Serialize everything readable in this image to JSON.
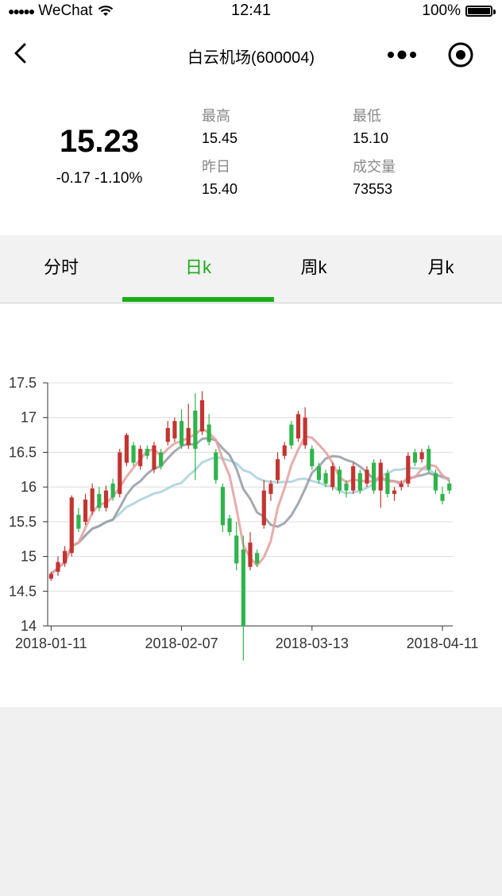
{
  "status_bar": {
    "carrier": "WeChat",
    "time": "12:41",
    "battery": "100%"
  },
  "nav": {
    "title": "白云机场(600004)"
  },
  "quote": {
    "price": "15.23",
    "change": "-0.17 -1.10%",
    "high_label": "最高",
    "high_value": "15.45",
    "low_label": "最低",
    "low_value": "15.10",
    "prev_label": "昨日",
    "prev_value": "15.40",
    "volume_label": "成交量",
    "volume_value": "73553"
  },
  "tabs": [
    {
      "label": "分时",
      "active": false
    },
    {
      "label": "日k",
      "active": true
    },
    {
      "label": "周k",
      "active": false
    },
    {
      "label": "月k",
      "active": false
    }
  ],
  "colors": {
    "up": "#c23531",
    "down": "#2fb44c",
    "accent": "#1aad19",
    "ma5": "#e8a2a2",
    "ma10": "#9aa0a8",
    "ma20": "#aed4dc"
  },
  "chart_data": {
    "type": "candlestick",
    "ylim": [
      14,
      17.5
    ],
    "y_ticks": [
      14,
      14.5,
      15,
      15.5,
      16,
      16.5,
      17,
      17.5
    ],
    "y_tick_labels": [
      "14",
      "14.5",
      "15",
      "15.5",
      "16",
      "16.5",
      "17",
      "17.5"
    ],
    "x_tick_labels": [
      {
        "label": "2018-01-11",
        "index": 0
      },
      {
        "label": "2018-02-07",
        "index": 19
      },
      {
        "label": "2018-03-13",
        "index": 38
      },
      {
        "label": "2018-04-11",
        "index": 57
      }
    ],
    "candles": [
      [
        14.68,
        14.75,
        14.65,
        14.78
      ],
      [
        14.78,
        14.92,
        14.72,
        15.0
      ],
      [
        14.9,
        15.08,
        14.85,
        15.15
      ],
      [
        15.05,
        15.85,
        15.0,
        15.88
      ],
      [
        15.6,
        15.4,
        15.35,
        15.7
      ],
      [
        15.5,
        15.82,
        15.45,
        15.9
      ],
      [
        15.65,
        15.98,
        15.6,
        16.05
      ],
      [
        15.9,
        15.7,
        15.65,
        16.0
      ],
      [
        15.7,
        15.95,
        15.65,
        16.02
      ],
      [
        16.05,
        15.85,
        15.8,
        16.12
      ],
      [
        15.9,
        16.5,
        15.85,
        16.55
      ],
      [
        16.35,
        16.75,
        16.3,
        16.78
      ],
      [
        16.6,
        16.35,
        16.3,
        16.65
      ],
      [
        16.3,
        16.55,
        16.25,
        16.6
      ],
      [
        16.55,
        16.45,
        16.4,
        16.6
      ],
      [
        16.25,
        16.6,
        16.2,
        16.65
      ],
      [
        16.5,
        16.3,
        16.25,
        16.55
      ],
      [
        16.65,
        16.85,
        16.6,
        16.95
      ],
      [
        16.7,
        16.95,
        16.65,
        17.0
      ],
      [
        16.95,
        16.6,
        16.55,
        17.12
      ],
      [
        16.6,
        16.85,
        16.55,
        17.2
      ],
      [
        17.1,
        16.55,
        16.1,
        17.35
      ],
      [
        16.8,
        17.25,
        16.75,
        17.38
      ],
      [
        16.9,
        16.65,
        16.6,
        17.05
      ],
      [
        16.5,
        16.1,
        16.05,
        16.55
      ],
      [
        16.0,
        15.45,
        15.35,
        16.05
      ],
      [
        15.55,
        15.35,
        15.3,
        15.6
      ],
      [
        15.3,
        14.9,
        14.8,
        15.5
      ],
      [
        15.1,
        14.0,
        13.5,
        15.3
      ],
      [
        14.85,
        15.2,
        14.8,
        15.35
      ],
      [
        15.05,
        14.9,
        14.85,
        15.1
      ],
      [
        15.45,
        15.95,
        15.4,
        16.1
      ],
      [
        15.9,
        16.05,
        15.8,
        16.1
      ],
      [
        16.1,
        16.4,
        16.05,
        16.5
      ],
      [
        16.45,
        16.6,
        16.4,
        16.65
      ],
      [
        16.9,
        16.6,
        16.55,
        16.95
      ],
      [
        16.7,
        17.05,
        16.65,
        17.1
      ],
      [
        16.6,
        17.0,
        16.55,
        17.15
      ],
      [
        16.55,
        16.3,
        16.25,
        16.6
      ],
      [
        16.3,
        16.1,
        16.05,
        16.35
      ],
      [
        16.2,
        16.05,
        16.0,
        16.25
      ],
      [
        16.0,
        16.3,
        15.95,
        16.35
      ],
      [
        16.25,
        15.95,
        15.9,
        16.3
      ],
      [
        16.05,
        15.95,
        15.85,
        16.1
      ],
      [
        15.95,
        16.3,
        15.9,
        16.35
      ],
      [
        16.2,
        15.95,
        15.9,
        16.25
      ],
      [
        16.05,
        16.25,
        16.0,
        16.3
      ],
      [
        16.35,
        15.95,
        15.9,
        16.4
      ],
      [
        15.95,
        16.35,
        15.7,
        16.4
      ],
      [
        16.2,
        15.9,
        15.85,
        16.25
      ],
      [
        15.9,
        15.95,
        15.8,
        16.0
      ],
      [
        16.0,
        16.05,
        15.95,
        16.1
      ],
      [
        16.05,
        16.45,
        16.0,
        16.5
      ],
      [
        16.5,
        16.35,
        16.3,
        16.55
      ],
      [
        16.4,
        16.5,
        16.35,
        16.55
      ],
      [
        16.55,
        16.25,
        16.2,
        16.6
      ],
      [
        16.2,
        15.95,
        15.9,
        16.25
      ],
      [
        15.9,
        15.8,
        15.75,
        16.0
      ],
      [
        16.05,
        15.95,
        15.9,
        16.1
      ]
    ]
  }
}
